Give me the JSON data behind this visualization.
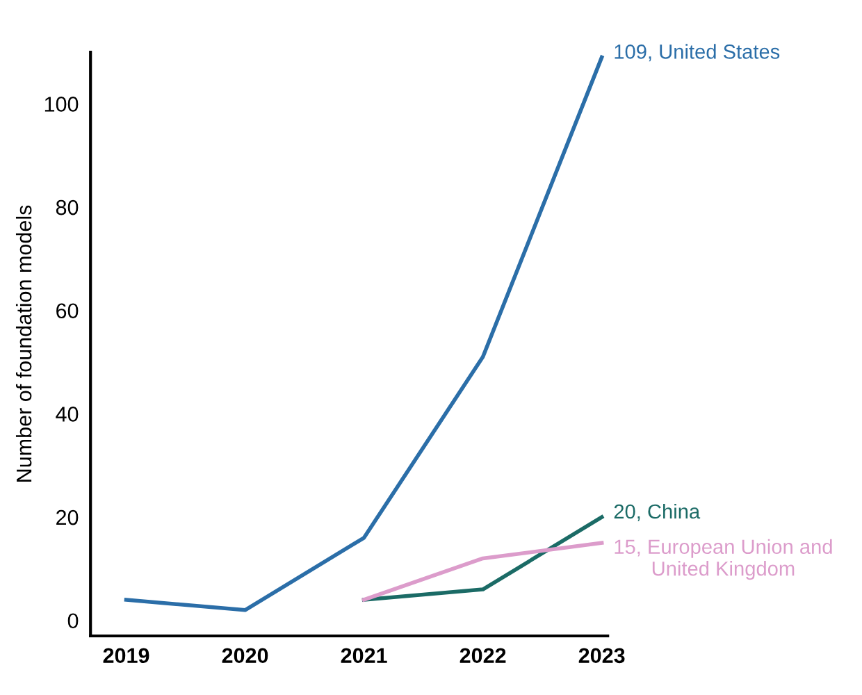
{
  "chart_data": {
    "type": "line",
    "ylabel": "Number of foundation models",
    "x": [
      2019,
      2020,
      2021,
      2022,
      2023
    ],
    "series": [
      {
        "color": "#2b6ea8",
        "values": [
          4,
          2,
          16,
          51,
          109
        ]
      },
      {
        "color": "#1b6b66",
        "values": [
          null,
          null,
          4,
          6,
          20
        ]
      },
      {
        "color": "#dc9ccb",
        "values": [
          null,
          null,
          4,
          12,
          15
        ]
      }
    ],
    "annotations": [
      "109, United States",
      "20, China",
      "15, European Union and\nUnited Kingdom"
    ],
    "xlim": [
      2018.7,
      2023.05
    ],
    "ylim": [
      -3,
      110
    ],
    "xticks": [
      2019,
      2020,
      2021,
      2022,
      2023
    ],
    "yticks": [
      0,
      20,
      40,
      60,
      80,
      100
    ],
    "marker": "none",
    "line_style": "solid"
  }
}
